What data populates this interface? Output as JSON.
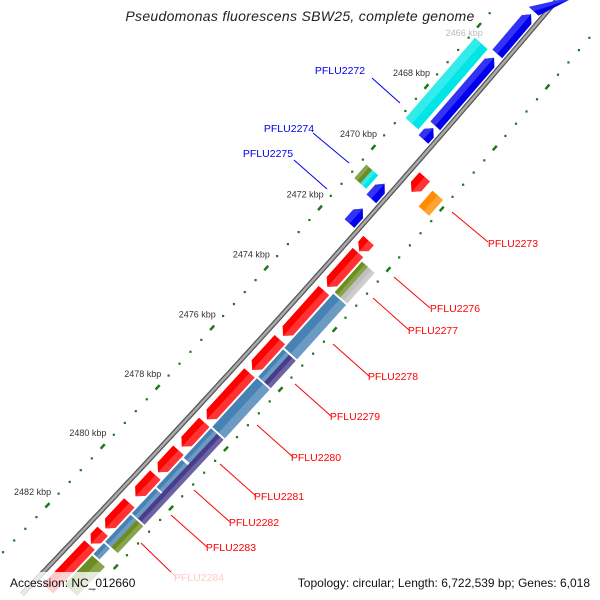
{
  "title": "Pseudomonas fluorescens SBW25, complete genome",
  "ruler_labels": [
    "2466 kbp",
    "2468 kbp",
    "2470 kbp",
    "2472 kbp",
    "2474 kbp",
    "2476 kbp",
    "2478 kbp",
    "2480 kbp",
    "2482 kbp"
  ],
  "gene_labels_forward": [
    "PFLU2272",
    "PFLU2274",
    "PFLU2275"
  ],
  "gene_labels_reverse": [
    "PFLU2273",
    "PFLU2276",
    "PFLU2277",
    "PFLU2278",
    "PFLU2279",
    "PFLU2280",
    "PFLU2281",
    "PFLU2282",
    "PFLU2283",
    "PFLU2284"
  ],
  "colors": {
    "forward": "#0000ee",
    "reverse": "#ff0000",
    "ticks": "#1a7a1a",
    "backbone": "#888888"
  },
  "footer": {
    "accession": "Accession: NC_012660",
    "topology": "Topology: circular; Length: 6,722,539 bp; Genes: 6,018"
  }
}
